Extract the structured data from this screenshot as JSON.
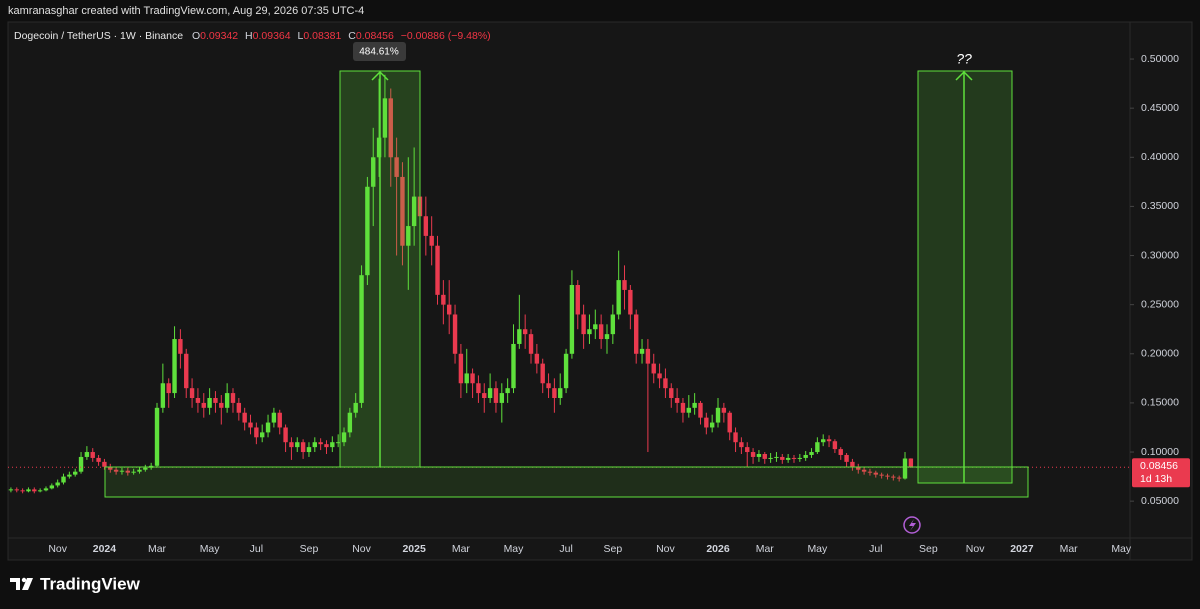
{
  "chart_data": {
    "type": "candlestick",
    "credit": "kamranasghar created with TradingView.com, Aug 29, 2026 07:35 UTC-4",
    "title": "Dogecoin / TetherUS · 1W · Binance",
    "legend_letters": [
      "O",
      "H",
      "L",
      "C"
    ],
    "change_label": "−0.00886 (−9.48%)",
    "countdown": "1d 13h",
    "brand": "TradingView",
    "annotations": [
      {
        "text": "484.61%"
      },
      {
        "text": "??"
      }
    ],
    "grid": false,
    "ylim": [
      0.0125,
      0.5377
    ],
    "yticks": [
      {
        "value": 0.05,
        "label": "0.05000"
      },
      {
        "value": 0.1,
        "label": "0.10000"
      },
      {
        "value": 0.15,
        "label": "0.15000"
      },
      {
        "value": 0.2,
        "label": "0.20000"
      },
      {
        "value": 0.25,
        "label": "0.25000"
      },
      {
        "value": 0.3,
        "label": "0.30000"
      },
      {
        "value": 0.35,
        "label": "0.35000"
      },
      {
        "value": 0.4,
        "label": "0.40000"
      },
      {
        "value": 0.45,
        "label": "0.45000"
      },
      {
        "value": 0.5,
        "label": "0.50000"
      }
    ],
    "categories": [
      null,
      null,
      null,
      null,
      null,
      null,
      null,
      null,
      "Nov",
      null,
      null,
      null,
      null,
      null,
      null,
      null,
      "2024",
      null,
      null,
      null,
      null,
      null,
      null,
      null,
      null,
      "Mar",
      null,
      null,
      null,
      null,
      null,
      null,
      null,
      null,
      "May",
      null,
      null,
      null,
      null,
      null,
      null,
      null,
      "Jul",
      null,
      null,
      null,
      null,
      null,
      null,
      null,
      null,
      "Sep",
      null,
      null,
      null,
      null,
      null,
      null,
      null,
      null,
      "Nov",
      null,
      null,
      null,
      null,
      null,
      null,
      null,
      null,
      "2025",
      null,
      null,
      null,
      null,
      null,
      null,
      null,
      "Mar",
      null,
      null,
      null,
      null,
      null,
      null,
      null,
      null,
      "May",
      null,
      null,
      null,
      null,
      null,
      null,
      null,
      null,
      "Jul",
      null,
      null,
      null,
      null,
      null,
      null,
      null,
      "Sep",
      null,
      null,
      null,
      null,
      null,
      null,
      null,
      null,
      "Nov",
      null,
      null,
      null,
      null,
      null,
      null,
      null,
      null,
      "2026",
      null,
      null,
      null,
      null,
      null,
      null,
      null,
      "Mar",
      null,
      null,
      null,
      null,
      null,
      null,
      null,
      null,
      "May",
      null,
      null,
      null,
      null,
      null,
      null,
      null,
      null,
      null,
      "Jul",
      null,
      null,
      null,
      null,
      null,
      null,
      null,
      null,
      "Sep",
      null,
      null,
      null,
      null,
      null,
      null,
      null,
      "Nov",
      null,
      null,
      null,
      null,
      null,
      null,
      null,
      "2027",
      null,
      null,
      null,
      null,
      null,
      null,
      null,
      "Mar",
      null,
      null,
      null,
      null,
      null,
      null,
      null,
      null,
      "May",
      null
    ],
    "series": [
      {
        "up_color": "#5fe03c",
        "down_color": "#ea3a4f",
        "open": [
          0.061,
          0.062,
          0.061,
          0.06,
          0.062,
          0.06,
          0.061,
          0.063,
          0.066,
          0.069,
          0.075,
          0.077,
          0.08,
          0.095,
          0.1,
          0.094,
          0.09,
          0.085,
          0.082,
          0.08,
          0.081,
          0.079,
          0.08,
          0.082,
          0.084,
          0.086,
          0.145,
          0.17,
          0.16,
          0.215,
          0.2,
          0.165,
          0.155,
          0.15,
          0.145,
          0.155,
          0.15,
          0.145,
          0.16,
          0.15,
          0.14,
          0.13,
          0.125,
          0.115,
          0.12,
          0.13,
          0.14,
          0.125,
          0.11,
          0.105,
          0.11,
          0.1,
          0.105,
          0.11,
          0.108,
          0.105,
          0.11,
          0.11,
          0.12,
          0.14,
          0.15,
          0.28,
          0.37,
          0.4,
          0.42,
          0.46,
          0.4,
          0.38,
          0.31,
          0.33,
          0.36,
          0.34,
          0.32,
          0.31,
          0.26,
          0.25,
          0.24,
          0.2,
          0.17,
          0.18,
          0.17,
          0.16,
          0.155,
          0.165,
          0.15,
          0.16,
          0.165,
          0.21,
          0.225,
          0.22,
          0.2,
          0.19,
          0.17,
          0.165,
          0.155,
          0.165,
          0.2,
          0.27,
          0.24,
          0.22,
          0.225,
          0.23,
          0.215,
          0.22,
          0.24,
          0.275,
          0.265,
          0.24,
          0.2,
          0.205,
          0.19,
          0.18,
          0.175,
          0.165,
          0.155,
          0.15,
          0.14,
          0.145,
          0.15,
          0.135,
          0.125,
          0.13,
          0.145,
          0.14,
          0.12,
          0.11,
          0.105,
          0.1,
          0.095,
          0.098,
          0.093,
          0.094,
          0.095,
          0.092,
          0.094,
          0.093,
          0.094,
          0.097,
          0.1,
          0.11,
          0.113,
          0.111,
          0.103,
          0.097,
          0.09,
          0.085,
          0.082,
          0.08,
          0.079,
          0.077,
          0.076,
          0.075,
          0.074,
          0.073,
          0.09342,
          null,
          null,
          null,
          null,
          null,
          null,
          null,
          null,
          null,
          null,
          null,
          null,
          null,
          null,
          null,
          null,
          null,
          null,
          null,
          null,
          null,
          null,
          null,
          null,
          null,
          null,
          null,
          null,
          null,
          null,
          null,
          null,
          null,
          null,
          null,
          null,
          null
        ],
        "high": [
          0.064,
          0.064,
          0.063,
          0.064,
          0.064,
          0.063,
          0.065,
          0.068,
          0.072,
          0.078,
          0.08,
          0.083,
          0.1,
          0.106,
          0.104,
          0.097,
          0.093,
          0.088,
          0.085,
          0.084,
          0.084,
          0.083,
          0.085,
          0.087,
          0.089,
          0.15,
          0.19,
          0.175,
          0.228,
          0.225,
          0.205,
          0.175,
          0.165,
          0.16,
          0.165,
          0.162,
          0.158,
          0.17,
          0.165,
          0.155,
          0.145,
          0.138,
          0.13,
          0.128,
          0.138,
          0.145,
          0.143,
          0.128,
          0.115,
          0.115,
          0.113,
          0.11,
          0.115,
          0.114,
          0.112,
          0.116,
          0.118,
          0.125,
          0.145,
          0.16,
          0.29,
          0.38,
          0.43,
          0.48,
          0.484,
          0.47,
          0.42,
          0.395,
          0.4,
          0.41,
          0.43,
          0.36,
          0.34,
          0.32,
          0.275,
          0.275,
          0.25,
          0.21,
          0.205,
          0.185,
          0.178,
          0.17,
          0.18,
          0.172,
          0.17,
          0.175,
          0.23,
          0.26,
          0.24,
          0.225,
          0.21,
          0.195,
          0.18,
          0.175,
          0.18,
          0.205,
          0.285,
          0.275,
          0.25,
          0.24,
          0.245,
          0.24,
          0.23,
          0.25,
          0.305,
          0.29,
          0.27,
          0.245,
          0.215,
          0.215,
          0.2,
          0.19,
          0.185,
          0.17,
          0.165,
          0.155,
          0.158,
          0.16,
          0.152,
          0.14,
          0.138,
          0.155,
          0.15,
          0.142,
          0.125,
          0.115,
          0.11,
          0.104,
          0.102,
          0.1,
          0.099,
          0.1,
          0.098,
          0.098,
          0.097,
          0.098,
          0.101,
          0.104,
          0.115,
          0.118,
          0.117,
          0.113,
          0.105,
          0.099,
          0.093,
          0.088,
          0.085,
          0.083,
          0.081,
          0.079,
          0.078,
          0.077,
          0.076,
          0.1,
          0.09364,
          null,
          null,
          null,
          null,
          null,
          null,
          null,
          null,
          null,
          null,
          null,
          null,
          null,
          null,
          null,
          null,
          null,
          null,
          null,
          null,
          null,
          null,
          null,
          null,
          null,
          null,
          null,
          null,
          null,
          null,
          null,
          null,
          null,
          null,
          null,
          null,
          null
        ],
        "low": [
          0.059,
          0.059,
          0.058,
          0.059,
          0.058,
          0.059,
          0.06,
          0.062,
          0.064,
          0.067,
          0.073,
          0.075,
          0.078,
          0.092,
          0.09,
          0.086,
          0.082,
          0.079,
          0.077,
          0.077,
          0.076,
          0.077,
          0.078,
          0.08,
          0.082,
          0.085,
          0.14,
          0.145,
          0.155,
          0.185,
          0.155,
          0.145,
          0.14,
          0.135,
          0.138,
          0.14,
          0.128,
          0.14,
          0.14,
          0.132,
          0.122,
          0.118,
          0.108,
          0.11,
          0.115,
          0.125,
          0.118,
          0.1,
          0.092,
          0.1,
          0.093,
          0.095,
          0.1,
          0.102,
          0.098,
          0.1,
          0.105,
          0.106,
          0.115,
          0.135,
          0.145,
          0.27,
          0.33,
          0.38,
          0.4,
          0.37,
          0.3,
          0.29,
          0.265,
          0.31,
          0.32,
          0.3,
          0.29,
          0.25,
          0.23,
          0.22,
          0.19,
          0.155,
          0.16,
          0.155,
          0.15,
          0.14,
          0.15,
          0.14,
          0.13,
          0.15,
          0.16,
          0.205,
          0.205,
          0.19,
          0.18,
          0.16,
          0.155,
          0.14,
          0.148,
          0.16,
          0.195,
          0.225,
          0.205,
          0.21,
          0.215,
          0.205,
          0.2,
          0.21,
          0.235,
          0.245,
          0.225,
          0.19,
          0.19,
          0.1,
          0.17,
          0.165,
          0.155,
          0.145,
          0.14,
          0.13,
          0.135,
          0.138,
          0.128,
          0.118,
          0.12,
          0.125,
          0.13,
          0.112,
          0.1,
          0.098,
          0.085,
          0.088,
          0.09,
          0.088,
          0.089,
          0.09,
          0.088,
          0.089,
          0.089,
          0.09,
          0.091,
          0.094,
          0.098,
          0.106,
          0.105,
          0.099,
          0.092,
          0.085,
          0.081,
          0.078,
          0.077,
          0.076,
          0.074,
          0.073,
          0.072,
          0.071,
          0.07,
          0.072,
          0.08381,
          null,
          null,
          null,
          null,
          null,
          null,
          null,
          null,
          null,
          null,
          null,
          null,
          null,
          null,
          null,
          null,
          null,
          null,
          null,
          null,
          null,
          null,
          null,
          null,
          null,
          null,
          null,
          null,
          null,
          null,
          null,
          null,
          null,
          null,
          null,
          null,
          null
        ],
        "close": [
          0.062,
          0.061,
          0.06,
          0.062,
          0.06,
          0.061,
          0.063,
          0.066,
          0.069,
          0.075,
          0.077,
          0.08,
          0.095,
          0.1,
          0.094,
          0.09,
          0.085,
          0.082,
          0.08,
          0.081,
          0.079,
          0.08,
          0.082,
          0.084,
          0.086,
          0.145,
          0.17,
          0.16,
          0.215,
          0.2,
          0.165,
          0.155,
          0.15,
          0.145,
          0.155,
          0.15,
          0.145,
          0.16,
          0.15,
          0.14,
          0.13,
          0.125,
          0.115,
          0.12,
          0.13,
          0.14,
          0.125,
          0.11,
          0.105,
          0.11,
          0.1,
          0.105,
          0.11,
          0.108,
          0.105,
          0.11,
          0.11,
          0.12,
          0.14,
          0.15,
          0.28,
          0.37,
          0.4,
          0.42,
          0.46,
          0.4,
          0.38,
          0.31,
          0.33,
          0.36,
          0.34,
          0.32,
          0.31,
          0.26,
          0.25,
          0.24,
          0.2,
          0.17,
          0.18,
          0.17,
          0.16,
          0.155,
          0.165,
          0.15,
          0.16,
          0.165,
          0.21,
          0.225,
          0.22,
          0.2,
          0.19,
          0.17,
          0.165,
          0.155,
          0.165,
          0.2,
          0.27,
          0.24,
          0.22,
          0.225,
          0.23,
          0.215,
          0.22,
          0.24,
          0.275,
          0.265,
          0.24,
          0.2,
          0.205,
          0.19,
          0.18,
          0.175,
          0.165,
          0.155,
          0.15,
          0.14,
          0.145,
          0.15,
          0.135,
          0.125,
          0.13,
          0.145,
          0.14,
          0.12,
          0.11,
          0.105,
          0.1,
          0.095,
          0.098,
          0.093,
          0.094,
          0.095,
          0.092,
          0.094,
          0.093,
          0.094,
          0.097,
          0.1,
          0.11,
          0.113,
          0.111,
          0.103,
          0.097,
          0.09,
          0.085,
          0.082,
          0.08,
          0.079,
          0.077,
          0.076,
          0.075,
          0.074,
          0.073,
          0.09342,
          0.08456,
          null,
          null,
          null,
          null,
          null,
          null,
          null,
          null,
          null,
          null,
          null,
          null,
          null,
          null,
          null,
          null,
          null,
          null,
          null,
          null,
          null,
          null,
          null,
          null,
          null,
          null,
          null,
          null,
          null,
          null,
          null,
          null,
          null,
          null,
          null,
          null,
          null
        ]
      }
    ]
  }
}
